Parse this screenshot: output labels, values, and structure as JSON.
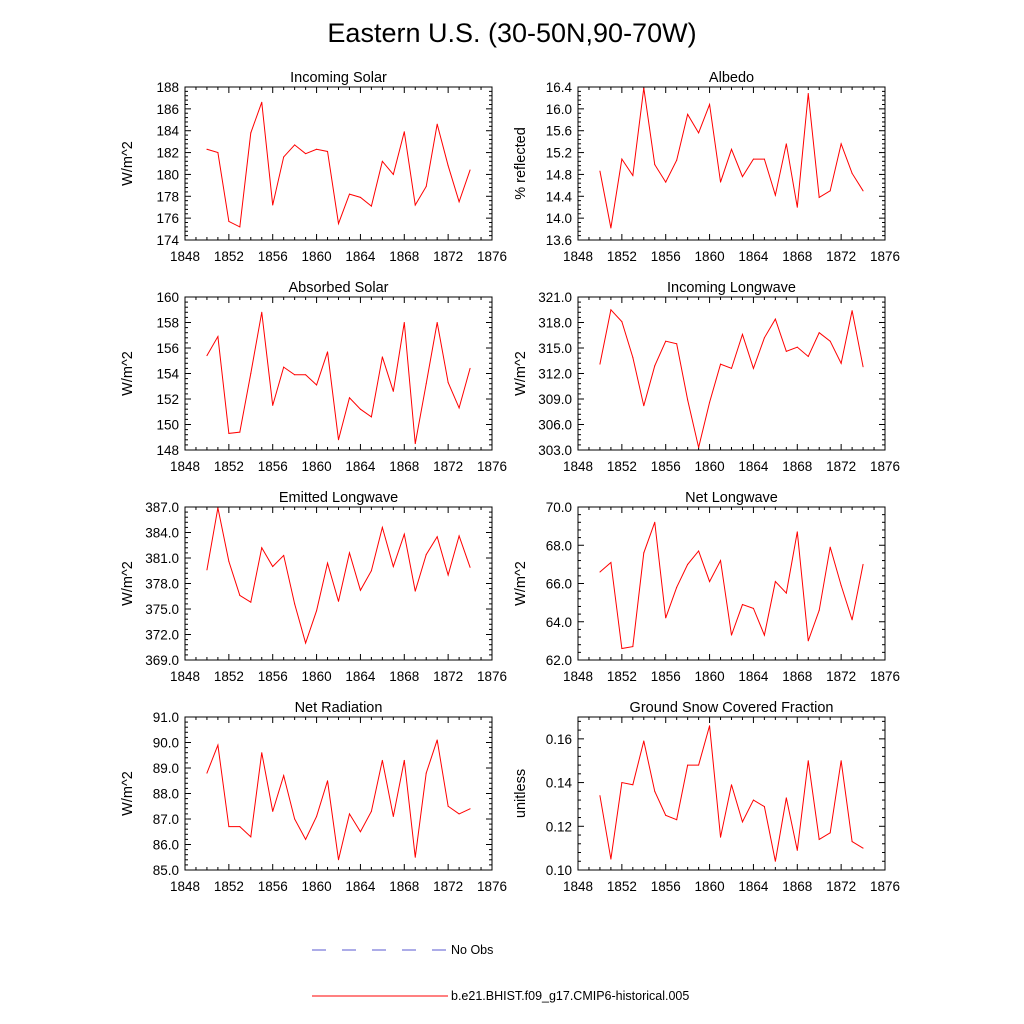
{
  "title": "Eastern U.S. (30-50N,90-70W)",
  "colors": {
    "model": "#ff0000",
    "obs": "#5a5ad0",
    "axis": "#000000"
  },
  "legend": [
    {
      "label": "No Obs",
      "style": "dashed",
      "color": "#5a5ad0"
    },
    {
      "label": "b.e21.BHIST.f09_g17.CMIP6-historical.005",
      "style": "solid",
      "color": "#ff0000"
    }
  ],
  "chart_data": [
    {
      "type": "line",
      "title": "Incoming Solar",
      "ylabel": "W/m^2",
      "xlim": [
        1848,
        1876
      ],
      "xticks": [
        1848,
        1852,
        1856,
        1860,
        1864,
        1868,
        1872,
        1876
      ],
      "ylim": [
        174,
        188
      ],
      "yticks": [
        "174",
        "176",
        "178",
        "180",
        "182",
        "184",
        "186",
        "188"
      ],
      "x": [
        1850,
        1851,
        1852,
        1853,
        1854,
        1855,
        1856,
        1857,
        1858,
        1859,
        1860,
        1861,
        1862,
        1863,
        1864,
        1865,
        1866,
        1867,
        1868,
        1869,
        1870,
        1871,
        1872,
        1873,
        1874
      ],
      "series": [
        {
          "name": "b.e21.BHIST.f09_g17.CMIP6-historical.005",
          "values": [
            182.3,
            182.0,
            175.7,
            175.2,
            183.8,
            186.6,
            177.2,
            181.6,
            182.7,
            181.9,
            182.3,
            182.1,
            175.5,
            178.2,
            177.9,
            177.1,
            181.2,
            180.0,
            183.9,
            177.2,
            178.9,
            184.6,
            180.8,
            177.5,
            180.4
          ]
        }
      ]
    },
    {
      "type": "line",
      "title": "Albedo",
      "ylabel": "% reflected",
      "xlim": [
        1848,
        1876
      ],
      "xticks": [
        1848,
        1852,
        1856,
        1860,
        1864,
        1868,
        1872,
        1876
      ],
      "ylim": [
        13.6,
        16.4
      ],
      "yticks": [
        "13.6",
        "14.0",
        "14.4",
        "14.8",
        "15.2",
        "15.6",
        "16.0",
        "16.4"
      ],
      "x": [
        1850,
        1851,
        1852,
        1853,
        1854,
        1855,
        1856,
        1857,
        1858,
        1859,
        1860,
        1861,
        1862,
        1863,
        1864,
        1865,
        1866,
        1867,
        1868,
        1869,
        1870,
        1871,
        1872,
        1873,
        1874
      ],
      "series": [
        {
          "name": "b.e21.BHIST.f09_g17.CMIP6-historical.005",
          "values": [
            14.86,
            13.82,
            15.08,
            14.78,
            16.38,
            14.98,
            14.66,
            15.06,
            15.9,
            15.56,
            16.08,
            14.66,
            15.26,
            14.76,
            15.08,
            15.08,
            14.42,
            15.36,
            14.2,
            16.28,
            14.38,
            14.5,
            15.36,
            14.82,
            14.5
          ]
        }
      ]
    },
    {
      "type": "line",
      "title": "Absorbed Solar",
      "ylabel": "W/m^2",
      "xlim": [
        1848,
        1876
      ],
      "xticks": [
        1848,
        1852,
        1856,
        1860,
        1864,
        1868,
        1872,
        1876
      ],
      "ylim": [
        148,
        160
      ],
      "yticks": [
        "148",
        "150",
        "152",
        "154",
        "156",
        "158",
        "160"
      ],
      "x": [
        1850,
        1851,
        1852,
        1853,
        1854,
        1855,
        1856,
        1857,
        1858,
        1859,
        1860,
        1861,
        1862,
        1863,
        1864,
        1865,
        1866,
        1867,
        1868,
        1869,
        1870,
        1871,
        1872,
        1873,
        1874
      ],
      "series": [
        {
          "name": "b.e21.BHIST.f09_g17.CMIP6-historical.005",
          "values": [
            155.4,
            156.9,
            149.3,
            149.4,
            154.0,
            158.8,
            151.5,
            154.5,
            153.9,
            153.9,
            153.1,
            155.7,
            148.8,
            152.1,
            151.2,
            150.6,
            155.3,
            152.6,
            158.0,
            148.5,
            153.2,
            158.0,
            153.3,
            151.3,
            154.4
          ]
        }
      ]
    },
    {
      "type": "line",
      "title": "Incoming Longwave",
      "ylabel": "W/m^2",
      "xlim": [
        1848,
        1876
      ],
      "xticks": [
        1848,
        1852,
        1856,
        1860,
        1864,
        1868,
        1872,
        1876
      ],
      "ylim": [
        303,
        321
      ],
      "yticks": [
        "303.0",
        "306.0",
        "309.0",
        "312.0",
        "315.0",
        "318.0",
        "321.0"
      ],
      "x": [
        1850,
        1851,
        1852,
        1853,
        1854,
        1855,
        1856,
        1857,
        1858,
        1859,
        1860,
        1861,
        1862,
        1863,
        1864,
        1865,
        1866,
        1867,
        1868,
        1869,
        1870,
        1871,
        1872,
        1873,
        1874
      ],
      "series": [
        {
          "name": "b.e21.BHIST.f09_g17.CMIP6-historical.005",
          "values": [
            313.1,
            319.5,
            318.1,
            313.9,
            308.2,
            312.9,
            315.8,
            315.5,
            308.9,
            303.3,
            308.6,
            313.1,
            312.6,
            316.6,
            312.6,
            316.2,
            318.4,
            314.6,
            315.1,
            314.0,
            316.8,
            315.8,
            313.2,
            319.4,
            312.8
          ]
        }
      ]
    },
    {
      "type": "line",
      "title": "Emitted Longwave",
      "ylabel": "W/m^2",
      "xlim": [
        1848,
        1876
      ],
      "xticks": [
        1848,
        1852,
        1856,
        1860,
        1864,
        1868,
        1872,
        1876
      ],
      "ylim": [
        369,
        387
      ],
      "yticks": [
        "369.0",
        "372.0",
        "375.0",
        "378.0",
        "381.0",
        "384.0",
        "387.0"
      ],
      "x": [
        1850,
        1851,
        1852,
        1853,
        1854,
        1855,
        1856,
        1857,
        1858,
        1859,
        1860,
        1861,
        1862,
        1863,
        1864,
        1865,
        1866,
        1867,
        1868,
        1869,
        1870,
        1871,
        1872,
        1873,
        1874
      ],
      "series": [
        {
          "name": "b.e21.BHIST.f09_g17.CMIP6-historical.005",
          "values": [
            379.6,
            386.9,
            380.6,
            376.6,
            375.8,
            382.2,
            380.0,
            381.3,
            375.6,
            371.0,
            374.8,
            380.4,
            375.9,
            381.6,
            377.2,
            379.5,
            384.6,
            380.0,
            383.8,
            377.1,
            381.4,
            383.5,
            379.0,
            383.6,
            379.9
          ]
        }
      ]
    },
    {
      "type": "line",
      "title": "Net Longwave",
      "ylabel": "W/m^2",
      "xlim": [
        1848,
        1876
      ],
      "xticks": [
        1848,
        1852,
        1856,
        1860,
        1864,
        1868,
        1872,
        1876
      ],
      "ylim": [
        62,
        70
      ],
      "yticks": [
        "62.0",
        "64.0",
        "66.0",
        "68.0",
        "70.0"
      ],
      "x": [
        1850,
        1851,
        1852,
        1853,
        1854,
        1855,
        1856,
        1857,
        1858,
        1859,
        1860,
        1861,
        1862,
        1863,
        1864,
        1865,
        1866,
        1867,
        1868,
        1869,
        1870,
        1871,
        1872,
        1873,
        1874
      ],
      "series": [
        {
          "name": "b.e21.BHIST.f09_g17.CMIP6-historical.005",
          "values": [
            66.6,
            67.1,
            62.6,
            62.7,
            67.6,
            69.2,
            64.2,
            65.8,
            67.0,
            67.7,
            66.1,
            67.2,
            63.3,
            64.9,
            64.7,
            63.3,
            66.1,
            65.5,
            68.7,
            63.0,
            64.6,
            67.9,
            65.9,
            64.1,
            67.0
          ]
        }
      ]
    },
    {
      "type": "line",
      "title": "Net Radiation",
      "ylabel": "W/m^2",
      "xlim": [
        1848,
        1876
      ],
      "xticks": [
        1848,
        1852,
        1856,
        1860,
        1864,
        1868,
        1872,
        1876
      ],
      "ylim": [
        85,
        91
      ],
      "yticks": [
        "85.0",
        "86.0",
        "87.0",
        "88.0",
        "89.0",
        "90.0",
        "91.0"
      ],
      "x": [
        1850,
        1851,
        1852,
        1853,
        1854,
        1855,
        1856,
        1857,
        1858,
        1859,
        1860,
        1861,
        1862,
        1863,
        1864,
        1865,
        1866,
        1867,
        1868,
        1869,
        1870,
        1871,
        1872,
        1873,
        1874
      ],
      "series": [
        {
          "name": "b.e21.BHIST.f09_g17.CMIP6-historical.005",
          "values": [
            88.8,
            89.9,
            86.7,
            86.7,
            86.3,
            89.6,
            87.3,
            88.7,
            87.0,
            86.2,
            87.1,
            88.5,
            85.4,
            87.2,
            86.5,
            87.3,
            89.3,
            87.1,
            89.3,
            85.5,
            88.8,
            90.1,
            87.5,
            87.2,
            87.4
          ]
        }
      ]
    },
    {
      "type": "line",
      "title": "Ground Snow Covered Fraction",
      "ylabel": "unitless",
      "xlim": [
        1848,
        1876
      ],
      "xticks": [
        1848,
        1852,
        1856,
        1860,
        1864,
        1868,
        1872,
        1876
      ],
      "ylim": [
        0.1,
        0.17
      ],
      "yticks": [
        "0.10",
        "0.12",
        "0.14",
        "0.16"
      ],
      "x": [
        1850,
        1851,
        1852,
        1853,
        1854,
        1855,
        1856,
        1857,
        1858,
        1859,
        1860,
        1861,
        1862,
        1863,
        1864,
        1865,
        1866,
        1867,
        1868,
        1869,
        1870,
        1871,
        1872,
        1873,
        1874
      ],
      "series": [
        {
          "name": "b.e21.BHIST.f09_g17.CMIP6-historical.005",
          "values": [
            0.134,
            0.105,
            0.14,
            0.139,
            0.159,
            0.136,
            0.125,
            0.123,
            0.148,
            0.148,
            0.166,
            0.115,
            0.139,
            0.122,
            0.132,
            0.129,
            0.104,
            0.133,
            0.109,
            0.15,
            0.114,
            0.117,
            0.15,
            0.113,
            0.11
          ]
        }
      ]
    }
  ]
}
